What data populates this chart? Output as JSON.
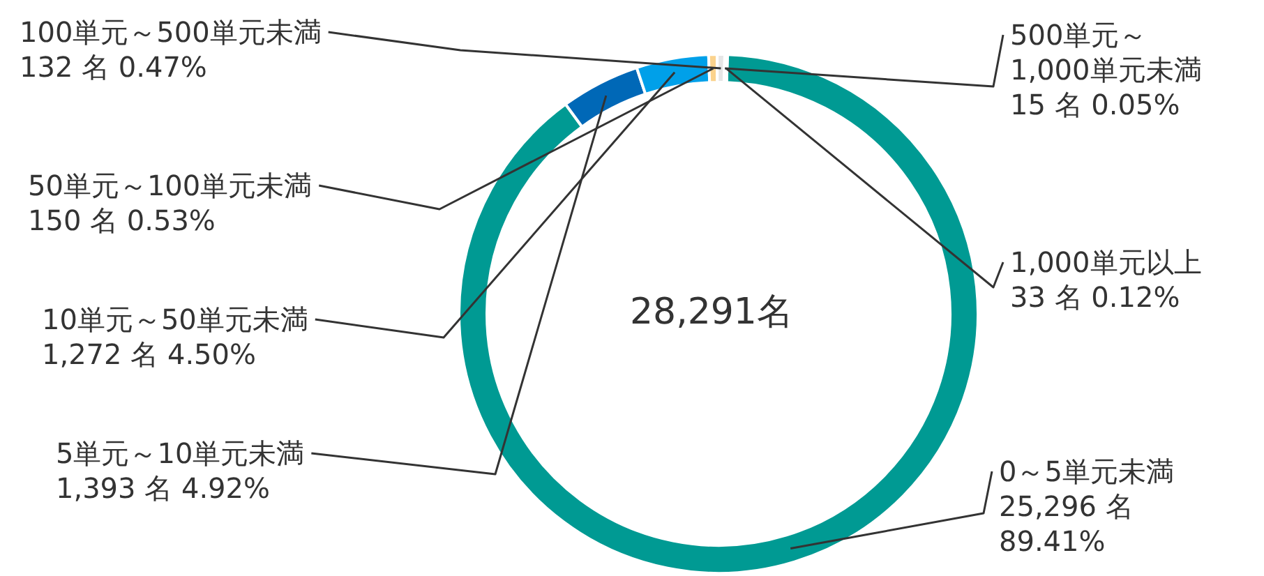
{
  "chart_data": {
    "type": "donut",
    "categories": [
      "0～5単元未満",
      "5単元～10単元未満",
      "10単元～50単元未満",
      "50単元～100単元未満",
      "100単元～500単元未満",
      "500単元～1,000単元未満",
      "1,000単元以上"
    ],
    "values": [
      25296,
      1393,
      1272,
      150,
      132,
      15,
      33
    ],
    "value_labels": [
      "25,296 名 89.41%",
      "1,393 名 4.92%",
      "1,272 名 4.50%",
      "150 名 0.53%",
      "132 名 0.47%",
      "15 名 0.05%",
      "33 名 0.12%"
    ],
    "colors": [
      "#009a93",
      "#0068b7",
      "#00a0e9",
      "#fbd38d",
      "#e6e6e6",
      "#f5a623",
      "#c8c8c8"
    ],
    "annotations": [
      "28,291名"
    ]
  }
}
